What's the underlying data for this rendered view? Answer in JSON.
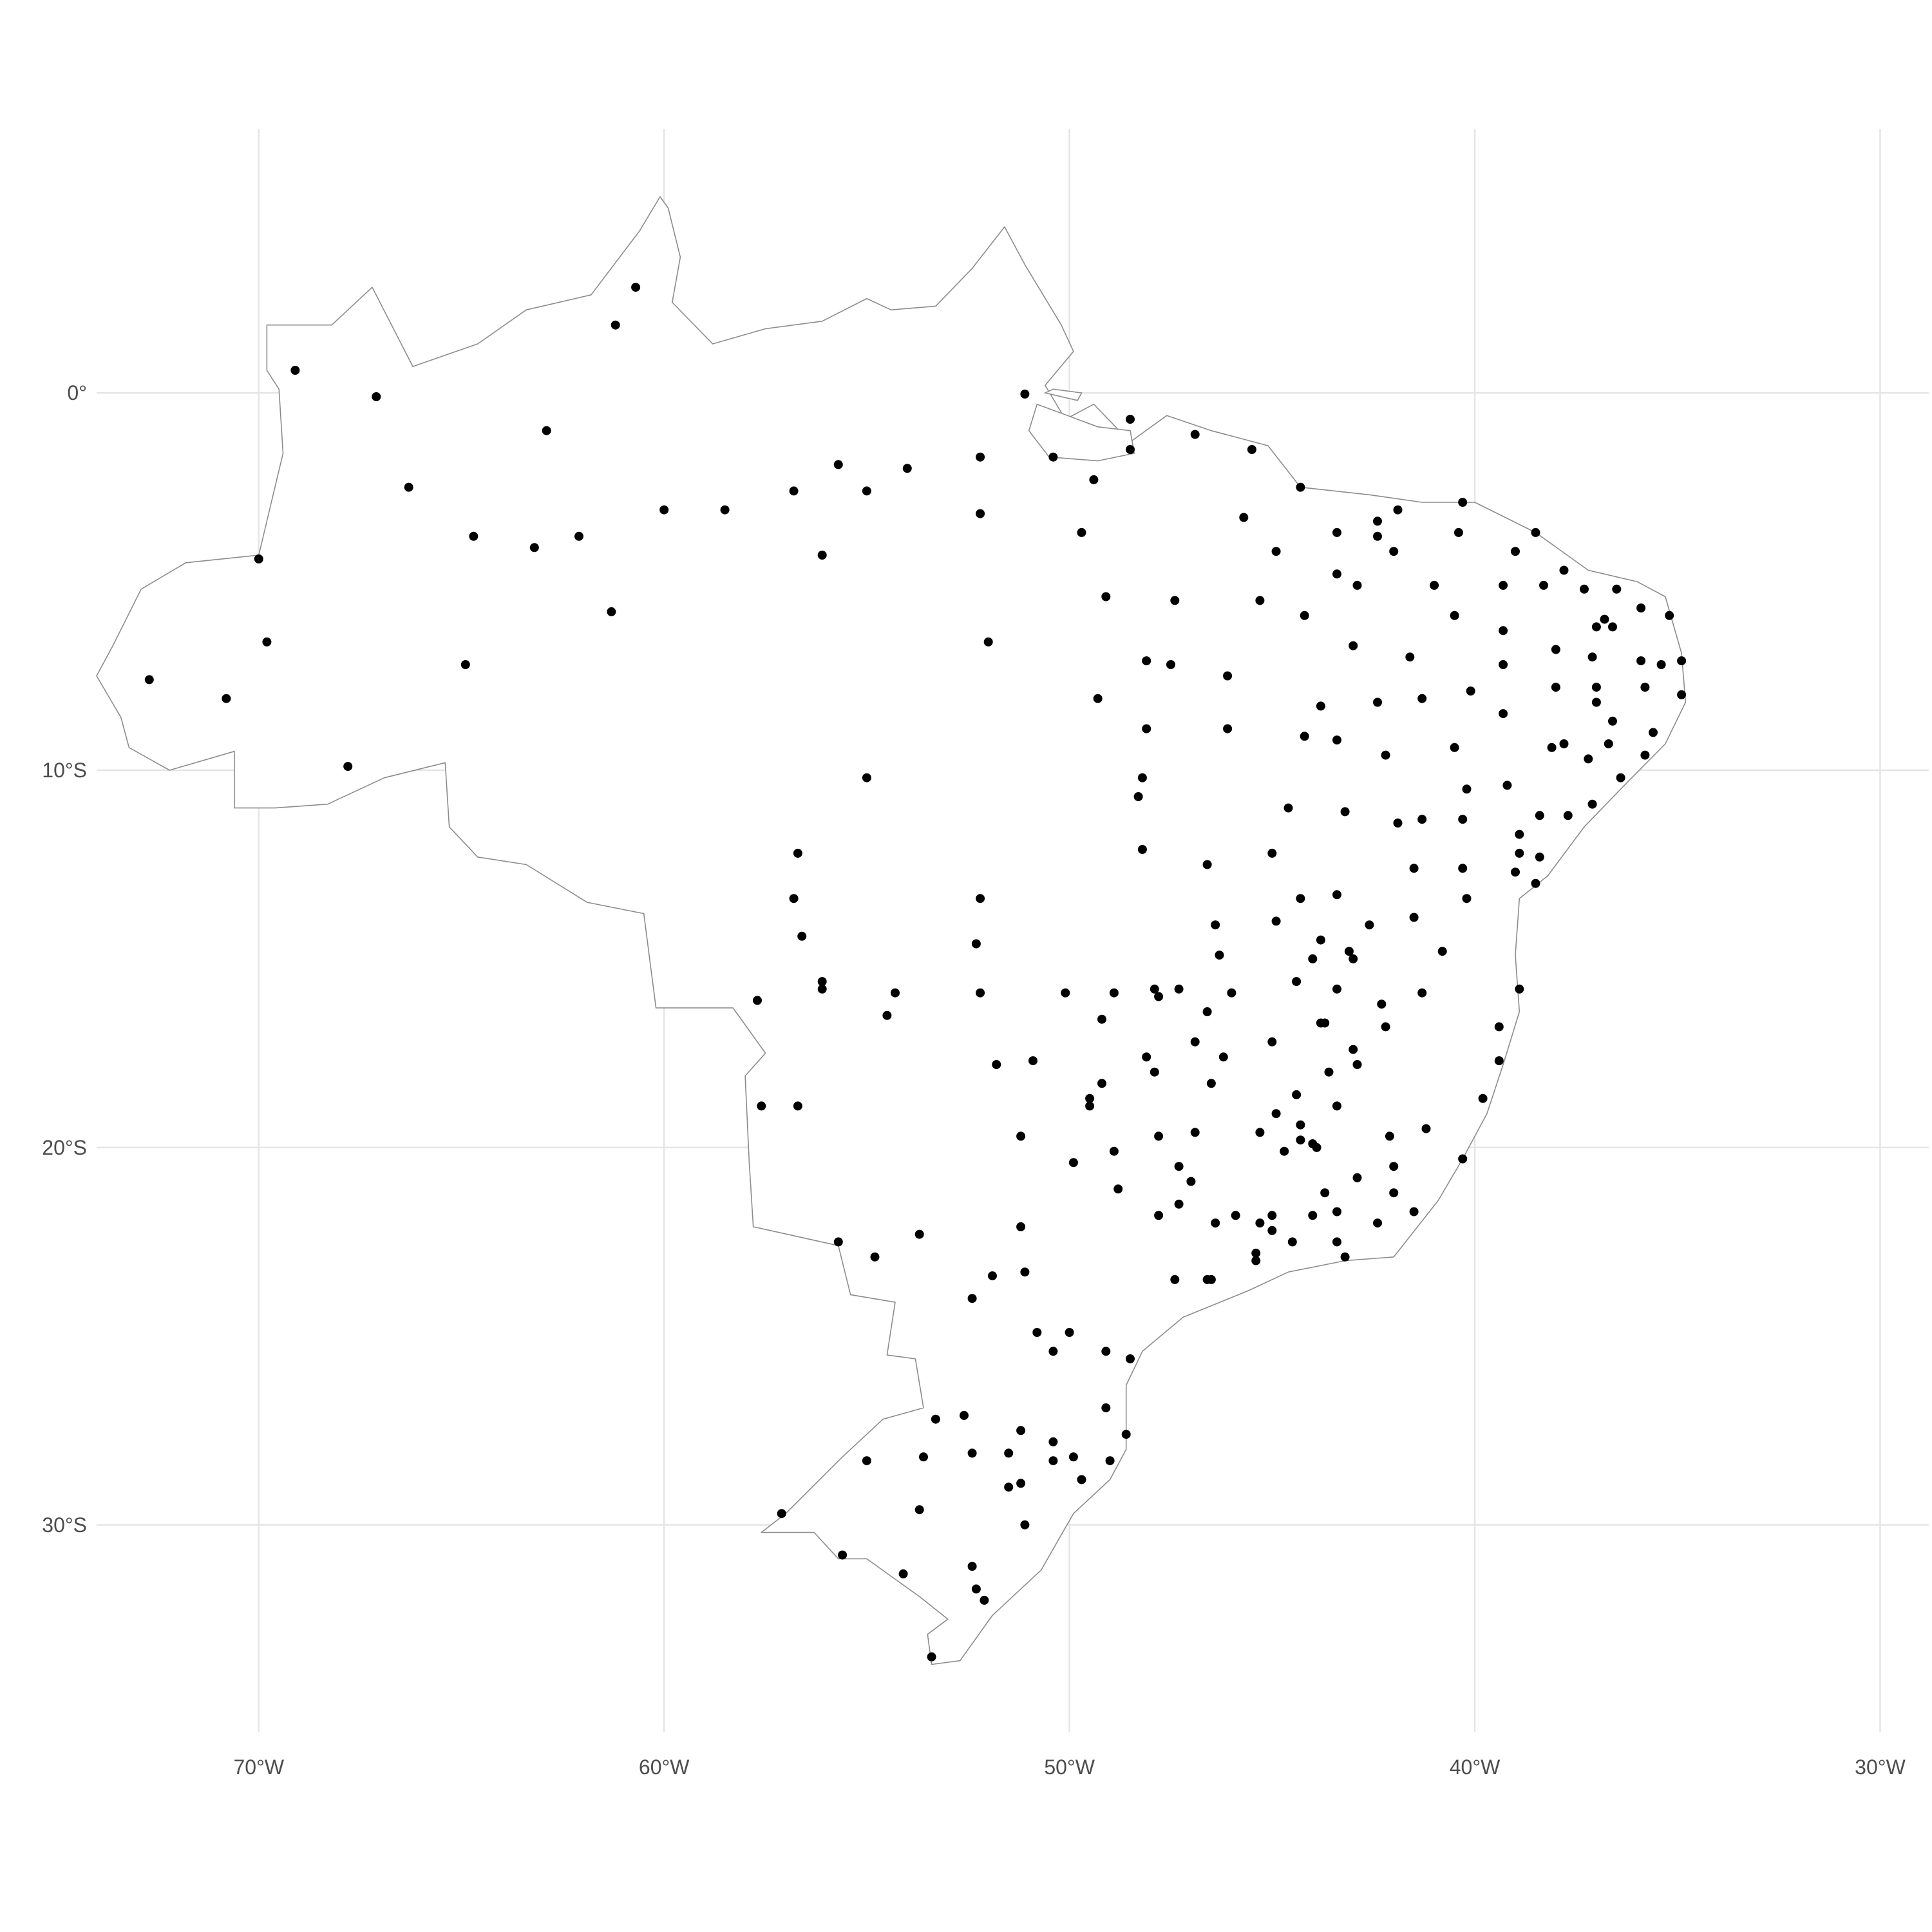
{
  "map": {
    "background": "#ffffff",
    "grid_color": "#e5e5e5",
    "outline_color": "#8c8c8c",
    "point_color": "#000000",
    "lon_ticks": [
      {
        "lon": -70,
        "label": "70°W"
      },
      {
        "lon": -60,
        "label": "60°W"
      },
      {
        "lon": -50,
        "label": "50°W"
      },
      {
        "lon": -40,
        "label": "40°W"
      },
      {
        "lon": -30,
        "label": "30°W"
      }
    ],
    "lat_ticks": [
      {
        "lat": 0,
        "label": "0°"
      },
      {
        "lat": -10,
        "label": "10°S"
      },
      {
        "lat": -20,
        "label": "20°S"
      },
      {
        "lat": -30,
        "label": "30°S"
      }
    ],
    "lon_range": [
      -74.0,
      -28.8
    ],
    "lat_range": [
      -35.5,
      7.0
    ],
    "country_outline": [
      [
        -67.2,
        2.8
      ],
      [
        -66.2,
        0.7
      ],
      [
        -64.6,
        1.3
      ],
      [
        -63.4,
        2.2
      ],
      [
        -61.8,
        2.6
      ],
      [
        -60.6,
        4.3
      ],
      [
        -60.1,
        5.2
      ],
      [
        -59.9,
        4.9
      ],
      [
        -59.6,
        3.6
      ],
      [
        -59.8,
        2.4
      ],
      [
        -58.8,
        1.3
      ],
      [
        -57.5,
        1.7
      ],
      [
        -56.1,
        1.9
      ],
      [
        -55.0,
        2.5
      ],
      [
        -54.4,
        2.2
      ],
      [
        -53.3,
        2.3
      ],
      [
        -52.4,
        3.3
      ],
      [
        -51.6,
        4.4
      ],
      [
        -51.1,
        3.4
      ],
      [
        -50.2,
        1.8
      ],
      [
        -49.9,
        1.1
      ],
      [
        -50.6,
        0.2
      ],
      [
        -50.1,
        -0.7
      ],
      [
        -49.4,
        -0.3
      ],
      [
        -48.5,
        -1.3
      ],
      [
        -47.6,
        -0.6
      ],
      [
        -46.5,
        -1.0
      ],
      [
        -45.1,
        -1.4
      ],
      [
        -44.3,
        -2.5
      ],
      [
        -42.6,
        -2.7
      ],
      [
        -41.3,
        -2.9
      ],
      [
        -40.0,
        -2.9
      ],
      [
        -38.5,
        -3.7
      ],
      [
        -37.2,
        -4.7
      ],
      [
        -36.0,
        -5.0
      ],
      [
        -35.3,
        -5.4
      ],
      [
        -34.9,
        -6.9
      ],
      [
        -34.8,
        -8.2
      ],
      [
        -35.3,
        -9.3
      ],
      [
        -36.4,
        -10.5
      ],
      [
        -37.3,
        -11.5
      ],
      [
        -38.2,
        -12.8
      ],
      [
        -38.9,
        -13.4
      ],
      [
        -39.0,
        -14.9
      ],
      [
        -38.9,
        -16.4
      ],
      [
        -39.3,
        -17.8
      ],
      [
        -39.7,
        -19.1
      ],
      [
        -40.3,
        -20.3
      ],
      [
        -40.9,
        -21.4
      ],
      [
        -42.0,
        -22.9
      ],
      [
        -43.2,
        -23.0
      ],
      [
        -44.6,
        -23.3
      ],
      [
        -45.6,
        -23.8
      ],
      [
        -47.2,
        -24.5
      ],
      [
        -48.2,
        -25.4
      ],
      [
        -48.6,
        -26.3
      ],
      [
        -48.6,
        -28.0
      ],
      [
        -49.0,
        -28.8
      ],
      [
        -49.9,
        -29.7
      ],
      [
        -50.7,
        -31.2
      ],
      [
        -51.9,
        -32.4
      ],
      [
        -52.7,
        -33.6
      ],
      [
        -53.4,
        -33.7
      ],
      [
        -53.5,
        -32.9
      ],
      [
        -53.0,
        -32.5
      ],
      [
        -53.7,
        -31.9
      ],
      [
        -55.0,
        -30.9
      ],
      [
        -55.7,
        -30.9
      ],
      [
        -56.3,
        -30.2
      ],
      [
        -57.6,
        -30.2
      ],
      [
        -57.0,
        -29.7
      ],
      [
        -55.6,
        -28.2
      ],
      [
        -54.6,
        -27.2
      ],
      [
        -53.6,
        -26.9
      ],
      [
        -53.8,
        -25.6
      ],
      [
        -54.5,
        -25.5
      ],
      [
        -54.3,
        -24.1
      ],
      [
        -55.4,
        -23.9
      ],
      [
        -55.7,
        -22.6
      ],
      [
        -57.8,
        -22.1
      ],
      [
        -57.9,
        -20.4
      ],
      [
        -58.0,
        -18.1
      ],
      [
        -57.5,
        -17.5
      ],
      [
        -58.3,
        -16.3
      ],
      [
        -60.2,
        -16.3
      ],
      [
        -60.5,
        -13.8
      ],
      [
        -61.9,
        -13.5
      ],
      [
        -63.4,
        -12.5
      ],
      [
        -64.6,
        -12.3
      ],
      [
        -65.3,
        -11.5
      ],
      [
        -65.4,
        -9.8
      ],
      [
        -66.9,
        -10.2
      ],
      [
        -68.3,
        -10.9
      ],
      [
        -69.6,
        -11.0
      ],
      [
        -70.6,
        -11.0
      ],
      [
        -70.6,
        -9.5
      ],
      [
        -72.2,
        -10.0
      ],
      [
        -73.2,
        -9.4
      ],
      [
        -73.4,
        -8.6
      ],
      [
        -74.0,
        -7.5
      ],
      [
        -73.6,
        -6.7
      ],
      [
        -72.9,
        -5.2
      ],
      [
        -71.8,
        -4.5
      ],
      [
        -70.0,
        -4.3
      ],
      [
        -69.4,
        -1.6
      ],
      [
        -69.5,
        0.1
      ],
      [
        -69.8,
        0.6
      ],
      [
        -69.8,
        1.8
      ],
      [
        -68.2,
        1.8
      ],
      [
        -67.2,
        2.8
      ]
    ],
    "islands": [
      [
        [
          -50.8,
          -0.3
        ],
        [
          -49.3,
          -0.9
        ],
        [
          -48.5,
          -1.0
        ],
        [
          -48.4,
          -1.6
        ],
        [
          -49.3,
          -1.8
        ],
        [
          -50.5,
          -1.7
        ],
        [
          -51.0,
          -1.0
        ],
        [
          -50.8,
          -0.3
        ]
      ],
      [
        [
          -50.6,
          0.0
        ],
        [
          -49.8,
          -0.2
        ],
        [
          -49.7,
          0.0
        ],
        [
          -50.4,
          0.1
        ],
        [
          -50.6,
          0.0
        ]
      ]
    ],
    "points": [
      [
        -60.7,
        2.8
      ],
      [
        -61.2,
        1.8
      ],
      [
        -69.1,
        0.6
      ],
      [
        -67.1,
        -0.1
      ],
      [
        -62.9,
        -1.0
      ],
      [
        -51.1,
        -0.03
      ],
      [
        -50.4,
        -1.7
      ],
      [
        -48.5,
        -1.5
      ],
      [
        -48.5,
        -0.7
      ],
      [
        -46.9,
        -1.1
      ],
      [
        -45.5,
        -1.5
      ],
      [
        -44.3,
        -2.5
      ],
      [
        -52.2,
        -1.7
      ],
      [
        -55.7,
        -1.9
      ],
      [
        -54.0,
        -2.0
      ],
      [
        -55.0,
        -2.6
      ],
      [
        -56.8,
        -2.6
      ],
      [
        -60.0,
        -3.1
      ],
      [
        -58.5,
        -3.1
      ],
      [
        -52.2,
        -3.2
      ],
      [
        -49.4,
        -2.3
      ],
      [
        -66.3,
        -2.5
      ],
      [
        -64.7,
        -3.8
      ],
      [
        -63.2,
        -4.1
      ],
      [
        -62.1,
        -3.8
      ],
      [
        -56.1,
        -4.3
      ],
      [
        -70.0,
        -4.4
      ],
      [
        -61.3,
        -5.8
      ],
      [
        -69.8,
        -6.6
      ],
      [
        -64.9,
        -7.2
      ],
      [
        -72.7,
        -7.6
      ],
      [
        -70.8,
        -8.1
      ],
      [
        -67.8,
        -9.9
      ],
      [
        -55.0,
        -10.2
      ],
      [
        -52.0,
        -6.6
      ],
      [
        -49.7,
        -3.7
      ],
      [
        -49.1,
        -5.4
      ],
      [
        -47.4,
        -5.5
      ],
      [
        -45.3,
        -5.5
      ],
      [
        -44.9,
        -4.2
      ],
      [
        -45.7,
        -3.3
      ],
      [
        -44.2,
        -5.9
      ],
      [
        -43.4,
        -3.7
      ],
      [
        -43.4,
        -4.8
      ],
      [
        -42.9,
        -5.1
      ],
      [
        -42.4,
        -3.4
      ],
      [
        -42.4,
        -3.8
      ],
      [
        -41.9,
        -3.1
      ],
      [
        -42.0,
        -4.2
      ],
      [
        -40.3,
        -2.9
      ],
      [
        -40.4,
        -3.7
      ],
      [
        -39.0,
        -4.2
      ],
      [
        -38.5,
        -3.7
      ],
      [
        -38.3,
        -5.1
      ],
      [
        -37.8,
        -4.7
      ],
      [
        -37.3,
        -5.2
      ],
      [
        -36.5,
        -5.2
      ],
      [
        -35.9,
        -5.7
      ],
      [
        -35.2,
        -5.9
      ],
      [
        -36.8,
        -6.0
      ],
      [
        -37.0,
        -6.2
      ],
      [
        -36.6,
        -6.2
      ],
      [
        -38.0,
        -6.8
      ],
      [
        -37.1,
        -7.0
      ],
      [
        -35.9,
        -7.1
      ],
      [
        -35.4,
        -7.2
      ],
      [
        -34.9,
        -7.1
      ],
      [
        -39.3,
        -6.3
      ],
      [
        -40.5,
        -5.9
      ],
      [
        -41.0,
        -5.1
      ],
      [
        -39.3,
        -5.1
      ],
      [
        -43.0,
        -6.7
      ],
      [
        -41.6,
        -7.0
      ],
      [
        -40.1,
        -7.9
      ],
      [
        -39.3,
        -7.2
      ],
      [
        -41.3,
        -8.1
      ],
      [
        -43.8,
        -8.3
      ],
      [
        -42.4,
        -8.2
      ],
      [
        -44.2,
        -9.1
      ],
      [
        -43.4,
        -9.2
      ],
      [
        -42.2,
        -9.6
      ],
      [
        -40.5,
        -9.4
      ],
      [
        -39.3,
        -8.5
      ],
      [
        -38.0,
        -7.8
      ],
      [
        -37.0,
        -7.8
      ],
      [
        -35.8,
        -7.8
      ],
      [
        -34.9,
        -8.0
      ],
      [
        -36.6,
        -8.7
      ],
      [
        -35.6,
        -9.0
      ],
      [
        -37.0,
        -8.2
      ],
      [
        -38.1,
        -9.4
      ],
      [
        -37.8,
        -9.3
      ],
      [
        -37.2,
        -9.7
      ],
      [
        -36.7,
        -9.3
      ],
      [
        -35.8,
        -9.6
      ],
      [
        -36.4,
        -10.2
      ],
      [
        -37.1,
        -10.9
      ],
      [
        -37.7,
        -11.2
      ],
      [
        -38.4,
        -11.2
      ],
      [
        -39.2,
        -10.4
      ],
      [
        -40.2,
        -10.5
      ],
      [
        -38.9,
        -11.7
      ],
      [
        -38.9,
        -12.2
      ],
      [
        -38.4,
        -12.3
      ],
      [
        -39.0,
        -12.7
      ],
      [
        -38.5,
        -13.0
      ],
      [
        -40.3,
        -11.3
      ],
      [
        -41.3,
        -11.3
      ],
      [
        -41.9,
        -11.4
      ],
      [
        -43.2,
        -11.1
      ],
      [
        -44.6,
        -11.0
      ],
      [
        -46.1,
        -8.9
      ],
      [
        -46.1,
        -7.5
      ],
      [
        -47.5,
        -7.2
      ],
      [
        -48.1,
        -7.1
      ],
      [
        -49.3,
        -8.1
      ],
      [
        -48.1,
        -8.9
      ],
      [
        -48.2,
        -10.2
      ],
      [
        -48.3,
        -10.7
      ],
      [
        -48.2,
        -12.1
      ],
      [
        -45.0,
        -12.2
      ],
      [
        -46.6,
        -12.5
      ],
      [
        -40.3,
        -12.6
      ],
      [
        -41.5,
        -12.6
      ],
      [
        -40.2,
        -13.4
      ],
      [
        -43.4,
        -13.3
      ],
      [
        -44.3,
        -13.4
      ],
      [
        -41.5,
        -13.9
      ],
      [
        -42.6,
        -14.1
      ],
      [
        -46.4,
        -14.1
      ],
      [
        -52.2,
        -13.4
      ],
      [
        -56.7,
        -12.2
      ],
      [
        -56.8,
        -13.4
      ],
      [
        -56.6,
        -14.4
      ],
      [
        -52.3,
        -14.6
      ],
      [
        -56.1,
        -15.6
      ],
      [
        -56.1,
        -15.8
      ],
      [
        -52.2,
        -15.9
      ],
      [
        -54.3,
        -15.9
      ],
      [
        -54.5,
        -16.5
      ],
      [
        -57.7,
        -16.1
      ],
      [
        -50.1,
        -15.9
      ],
      [
        -48.9,
        -15.9
      ],
      [
        -47.9,
        -15.8
      ],
      [
        -47.8,
        -16.0
      ],
      [
        -47.3,
        -15.8
      ],
      [
        -46.3,
        -14.9
      ],
      [
        -46.0,
        -15.9
      ],
      [
        -44.9,
        -14.0
      ],
      [
        -43.8,
        -14.5
      ],
      [
        -43.1,
        -14.8
      ],
      [
        -43.0,
        -15.0
      ],
      [
        -44.0,
        -15.0
      ],
      [
        -44.4,
        -15.6
      ],
      [
        -43.4,
        -15.8
      ],
      [
        -42.3,
        -16.2
      ],
      [
        -41.3,
        -15.9
      ],
      [
        -40.8,
        -14.8
      ],
      [
        -38.9,
        -15.8
      ],
      [
        -39.4,
        -16.8
      ],
      [
        -42.2,
        -16.8
      ],
      [
        -45.0,
        -17.2
      ],
      [
        -43.7,
        -16.7
      ],
      [
        -43.8,
        -16.7
      ],
      [
        -46.9,
        -17.2
      ],
      [
        -46.6,
        -16.4
      ],
      [
        -49.2,
        -16.6
      ],
      [
        -48.1,
        -17.6
      ],
      [
        -47.9,
        -18.0
      ],
      [
        -46.2,
        -17.6
      ],
      [
        -46.5,
        -18.3
      ],
      [
        -43.0,
        -17.4
      ],
      [
        -42.9,
        -17.8
      ],
      [
        -43.6,
        -18.0
      ],
      [
        -44.4,
        -18.6
      ],
      [
        -49.2,
        -18.3
      ],
      [
        -49.5,
        -18.7
      ],
      [
        -49.5,
        -18.9
      ],
      [
        -51.8,
        -17.8
      ],
      [
        -50.9,
        -17.7
      ],
      [
        -57.6,
        -18.9
      ],
      [
        -56.7,
        -18.9
      ],
      [
        -51.2,
        -19.7
      ],
      [
        -48.9,
        -20.1
      ],
      [
        -47.8,
        -19.7
      ],
      [
        -46.9,
        -19.6
      ],
      [
        -45.3,
        -19.6
      ],
      [
        -44.9,
        -19.1
      ],
      [
        -44.3,
        -19.4
      ],
      [
        -44.0,
        -19.9
      ],
      [
        -43.9,
        -20.0
      ],
      [
        -44.3,
        -19.8
      ],
      [
        -44.7,
        -20.1
      ],
      [
        -43.4,
        -18.9
      ],
      [
        -42.1,
        -19.7
      ],
      [
        -41.2,
        -19.5
      ],
      [
        -40.3,
        -20.3
      ],
      [
        -39.8,
        -18.7
      ],
      [
        -39.4,
        -17.7
      ],
      [
        -42.0,
        -20.5
      ],
      [
        -42.9,
        -20.8
      ],
      [
        -42.0,
        -21.2
      ],
      [
        -41.5,
        -21.7
      ],
      [
        -42.4,
        -22.0
      ],
      [
        -43.4,
        -21.7
      ],
      [
        -43.7,
        -21.2
      ],
      [
        -44.0,
        -21.8
      ],
      [
        -45.0,
        -21.8
      ],
      [
        -45.3,
        -22.0
      ],
      [
        -45.0,
        -22.2
      ],
      [
        -44.5,
        -22.5
      ],
      [
        -43.4,
        -22.5
      ],
      [
        -43.2,
        -22.9
      ],
      [
        -45.4,
        -22.8
      ],
      [
        -45.4,
        -23.0
      ],
      [
        -46.4,
        -22.0
      ],
      [
        -45.9,
        -21.8
      ],
      [
        -47.3,
        -21.5
      ],
      [
        -47.0,
        -20.9
      ],
      [
        -47.3,
        -20.5
      ],
      [
        -47.8,
        -21.8
      ],
      [
        -48.8,
        -21.1
      ],
      [
        -49.9,
        -20.4
      ],
      [
        -46.6,
        -23.5
      ],
      [
        -46.5,
        -23.5
      ],
      [
        -47.4,
        -23.5
      ],
      [
        -50.0,
        -24.9
      ],
      [
        -50.4,
        -25.4
      ],
      [
        -50.8,
        -24.9
      ],
      [
        -51.1,
        -23.3
      ],
      [
        -51.9,
        -23.4
      ],
      [
        -51.2,
        -22.1
      ],
      [
        -52.4,
        -24.0
      ],
      [
        -53.7,
        -22.3
      ],
      [
        -54.8,
        -22.9
      ],
      [
        -55.7,
        -22.5
      ],
      [
        -49.1,
        -25.4
      ],
      [
        -48.5,
        -25.6
      ],
      [
        -49.1,
        -26.9
      ],
      [
        -48.6,
        -27.6
      ],
      [
        -50.4,
        -27.8
      ],
      [
        -51.2,
        -27.5
      ],
      [
        -52.6,
        -27.1
      ],
      [
        -53.3,
        -27.2
      ],
      [
        -49.9,
        -28.2
      ],
      [
        -49.7,
        -28.8
      ],
      [
        -49.0,
        -28.3
      ],
      [
        -50.4,
        -28.3
      ],
      [
        -51.5,
        -28.1
      ],
      [
        -52.4,
        -28.1
      ],
      [
        -53.6,
        -28.2
      ],
      [
        -55.0,
        -28.3
      ],
      [
        -51.2,
        -28.9
      ],
      [
        -51.5,
        -29.0
      ],
      [
        -53.7,
        -29.6
      ],
      [
        -57.1,
        -29.7
      ],
      [
        -51.1,
        -30.0
      ],
      [
        -52.4,
        -31.1
      ],
      [
        -55.6,
        -30.8
      ],
      [
        -54.1,
        -31.3
      ],
      [
        -52.3,
        -31.7
      ],
      [
        -52.1,
        -32.0
      ],
      [
        -53.4,
        -33.5
      ]
    ]
  }
}
